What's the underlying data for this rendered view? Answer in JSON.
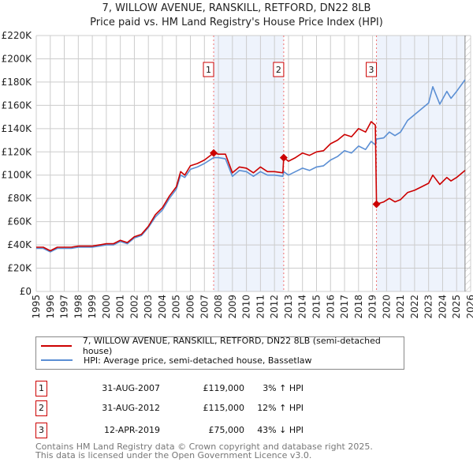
{
  "chart_data": {
    "type": "line",
    "title": "7, WILLOW AVENUE, RANSKILL, RETFORD, DN22 8LB",
    "subtitle": "Price paid vs. HM Land Registry's House Price Index (HPI)",
    "xlim": [
      1995,
      2026
    ],
    "ylim": [
      0,
      220000
    ],
    "x_ticks": [
      "1995",
      "1996",
      "1997",
      "1998",
      "1999",
      "2000",
      "2001",
      "2002",
      "2003",
      "2004",
      "2005",
      "2006",
      "2007",
      "2008",
      "2009",
      "2010",
      "2011",
      "2012",
      "2013",
      "2014",
      "2015",
      "2016",
      "2017",
      "2018",
      "2019",
      "2020",
      "2021",
      "2022",
      "2023",
      "2024",
      "2025",
      "2026"
    ],
    "y_ticks": [
      {
        "v": 0,
        "label": "£0"
      },
      {
        "v": 20000,
        "label": "£20K"
      },
      {
        "v": 40000,
        "label": "£40K"
      },
      {
        "v": 60000,
        "label": "£60K"
      },
      {
        "v": 80000,
        "label": "£80K"
      },
      {
        "v": 100000,
        "label": "£100K"
      },
      {
        "v": 120000,
        "label": "£120K"
      },
      {
        "v": 140000,
        "label": "£140K"
      },
      {
        "v": 160000,
        "label": "£160K"
      },
      {
        "v": 180000,
        "label": "£180K"
      },
      {
        "v": 200000,
        "label": "£200K"
      },
      {
        "v": 220000,
        "label": "£220K"
      }
    ],
    "grid": true,
    "x": [
      1995.0,
      1995.5,
      1996.0,
      1996.5,
      1997.0,
      1997.5,
      1998.0,
      1998.5,
      1999.0,
      1999.5,
      2000.0,
      2000.5,
      2001.0,
      2001.5,
      2002.0,
      2002.5,
      2003.0,
      2003.5,
      2004.0,
      2004.5,
      2005.0,
      2005.3,
      2005.6,
      2006.0,
      2006.5,
      2007.0,
      2007.66,
      2008.0,
      2008.5,
      2009.0,
      2009.5,
      2010.0,
      2010.5,
      2011.0,
      2011.5,
      2012.0,
      2012.6,
      2012.66,
      2013.0,
      2013.5,
      2014.0,
      2014.5,
      2015.0,
      2015.5,
      2016.0,
      2016.5,
      2017.0,
      2017.5,
      2018.0,
      2018.5,
      2018.9,
      2019.2,
      2019.28,
      2019.8,
      2020.2,
      2020.6,
      2021.0,
      2021.5,
      2022.0,
      2022.5,
      2023.0,
      2023.3,
      2023.8,
      2024.3,
      2024.6,
      2025.0,
      2025.6
    ],
    "series": [
      {
        "name": "7, WILLOW AVENUE, RANSKILL, RETFORD, DN22 8LB (semi-detached house)",
        "color": "#cc0000",
        "values": [
          38,
          38,
          35,
          38,
          38,
          38,
          39,
          39,
          39,
          40,
          41,
          41,
          44,
          42,
          47,
          49,
          56,
          66,
          72,
          82,
          90,
          103,
          100,
          108,
          110,
          113,
          119,
          118,
          118,
          102,
          107,
          106,
          102,
          107,
          103,
          103,
          102,
          115,
          112,
          115,
          119,
          117,
          120,
          121,
          127,
          130,
          135,
          133,
          140,
          137,
          146,
          143,
          75,
          77,
          80,
          77,
          79,
          85,
          87,
          90,
          93,
          100,
          92,
          98,
          95,
          98,
          104
        ]
      },
      {
        "name": "HPI: Average price, semi-detached house, Bassetlaw",
        "color": "#5b8fd4",
        "values": [
          37,
          37,
          34,
          37,
          37,
          37,
          38,
          38,
          38,
          39,
          40,
          40,
          43,
          41,
          46,
          48,
          55,
          64,
          70,
          80,
          88,
          100,
          98,
          105,
          107,
          110,
          115,
          115,
          114,
          99,
          104,
          103,
          99,
          103,
          100,
          100,
          99,
          103,
          100,
          103,
          106,
          104,
          107,
          108,
          113,
          116,
          121,
          119,
          125,
          122,
          129,
          126,
          131,
          132,
          137,
          134,
          137,
          147,
          152,
          157,
          162,
          176,
          161,
          172,
          166,
          172,
          182
        ]
      }
    ],
    "value_unit": "thousand GBP",
    "sales": [
      {
        "num": "1",
        "x": 2007.66,
        "value": 119,
        "date": "31-AUG-2007",
        "price": "£119,000",
        "hpi": "3% ↑ HPI"
      },
      {
        "num": "2",
        "x": 2012.66,
        "value": 115,
        "date": "31-AUG-2012",
        "price": "£115,000",
        "hpi": "12% ↑ HPI"
      },
      {
        "num": "3",
        "x": 2019.28,
        "value": 75,
        "date": "12-APR-2019",
        "price": "£75,000",
        "hpi": "43% ↓ HPI"
      }
    ],
    "forecast_start": 2025.6,
    "legend_placement": "below"
  },
  "footer": {
    "line1": "Contains HM Land Registry data © Crown copyright and database right 2025.",
    "line2": "This data is licensed under the Open Government Licence v3.0."
  }
}
